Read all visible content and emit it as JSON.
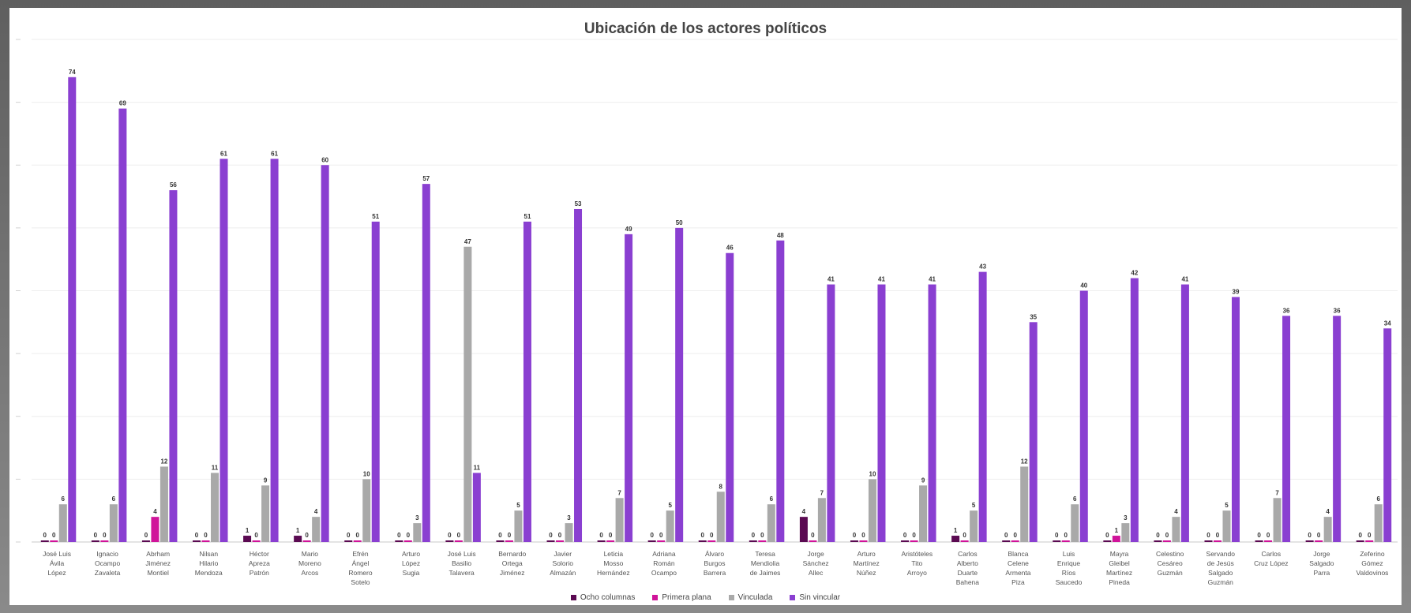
{
  "chart_data": {
    "type": "bar",
    "title": "Ubicación de los actores políticos",
    "xlabel": "",
    "ylabel": "",
    "ylim": [
      0,
      80
    ],
    "grid": true,
    "legend_position": "bottom",
    "categories": [
      "José Luis Ávila López",
      "Ignacio Ocampo Zavaleta",
      "Abrham Jiménez Montiel",
      "Nilsan Hilario Mendoza",
      "Héctor Apreza Patrón",
      "Mario Moreno Arcos",
      "Efrén Ángel Romero Sotelo",
      "Arturo López Sugia",
      "José Luis Basilio Talavera",
      "Bernardo Ortega Jiménez",
      "Javier Solorio Almazán",
      "Leticia Mosso Hernández",
      "Adriana Román Ocampo",
      "Álvaro Burgos Barrera",
      "Teresa Mendiolia de Jaimes",
      "Jorge Sánchez Allec",
      "Arturo Martínez Núñez",
      "Aristóteles Tito Arroyo",
      "Carlos Alberto Duarte Bahena",
      "Blanca Celene Armenta Piza",
      "Luis Enrique Ríos Saucedo",
      "Mayra Gleibel Martínez Pineda",
      "Celestino Cesáreo Guzmán",
      "Servando de Jesús Salgado Guzmán",
      "Carlos Cruz López",
      "Jorge Salgado Parra",
      "Zeferino Gómez Valdovinos"
    ],
    "series": [
      {
        "name": "Ocho columnas",
        "color": "#5b0a52",
        "values": [
          0,
          0,
          0,
          0,
          1,
          1,
          0,
          0,
          0,
          0,
          0,
          0,
          0,
          0,
          0,
          4,
          0,
          0,
          1,
          0,
          0,
          0,
          0,
          0,
          0,
          0,
          0
        ]
      },
      {
        "name": "Primera plana",
        "color": "#d0149a",
        "values": [
          0,
          0,
          4,
          0,
          0,
          0,
          0,
          0,
          0,
          0,
          0,
          0,
          0,
          0,
          0,
          0,
          0,
          0,
          0,
          0,
          0,
          1,
          0,
          0,
          0,
          0,
          0
        ]
      },
      {
        "name": "Vinculada",
        "color": "#a9a9a9",
        "values": [
          6,
          6,
          12,
          11,
          9,
          4,
          10,
          3,
          47,
          5,
          3,
          7,
          5,
          8,
          6,
          7,
          10,
          9,
          5,
          12,
          6,
          3,
          4,
          5,
          7,
          4,
          6
        ]
      },
      {
        "name": "Sin vincular",
        "color": "#8a3fd1",
        "values": [
          74,
          69,
          56,
          61,
          61,
          60,
          51,
          57,
          11,
          51,
          53,
          49,
          50,
          46,
          48,
          41,
          41,
          41,
          43,
          35,
          40,
          42,
          41,
          39,
          36,
          36,
          34
        ]
      }
    ]
  }
}
